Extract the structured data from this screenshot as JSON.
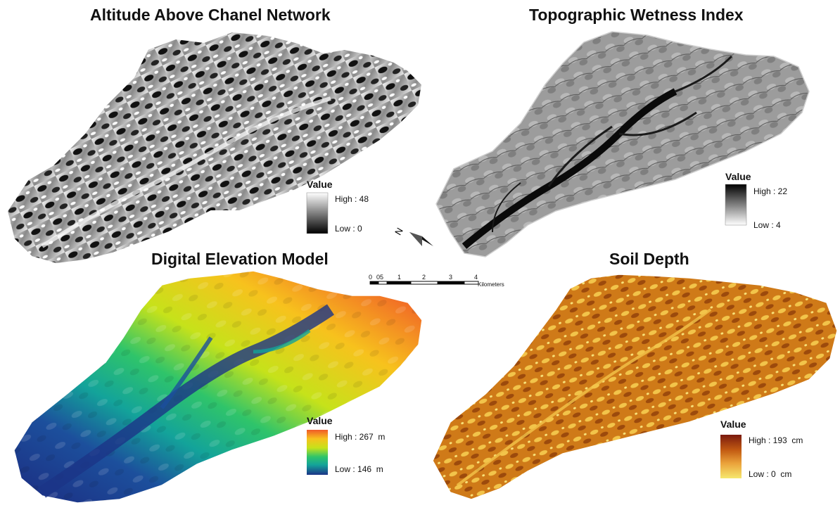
{
  "panels": {
    "aacn": {
      "title": "Altitude Above Chanel Network",
      "legend": {
        "title": "Value",
        "high": "High : 48",
        "low": "Low : 0",
        "colors": [
          "#ffffff",
          "#000000"
        ]
      }
    },
    "twi": {
      "title": "Topographic Wetness Index",
      "legend": {
        "title": "Value",
        "high": "High : 22",
        "low": "Low : 4",
        "colors": [
          "#000000",
          "#ffffff"
        ]
      }
    },
    "dem": {
      "title": "Digital Elevation Model",
      "legend": {
        "title": "Value",
        "high": "High : 267",
        "high_unit": "m",
        "low": "Low : 146",
        "low_unit": "m",
        "colors": [
          "#f05a28",
          "#f7c21d",
          "#c6e21a",
          "#2fc46a",
          "#13a39a",
          "#1c4f9c",
          "#1c3487"
        ]
      }
    },
    "soil": {
      "title": "Soil Depth",
      "legend": {
        "title": "Value",
        "high": "High : 193",
        "high_unit": "cm",
        "low": "Low : 0",
        "low_unit": "cm",
        "colors": [
          "#7a1a0e",
          "#c25a12",
          "#eaa13a",
          "#f6e86e"
        ]
      }
    }
  },
  "scale_bar": {
    "ticks": [
      "0",
      "05",
      "1",
      "2",
      "3",
      "4"
    ],
    "unit": "Kilometers"
  },
  "north_arrow": {
    "label": "N",
    "icon": "north-arrow-icon"
  }
}
